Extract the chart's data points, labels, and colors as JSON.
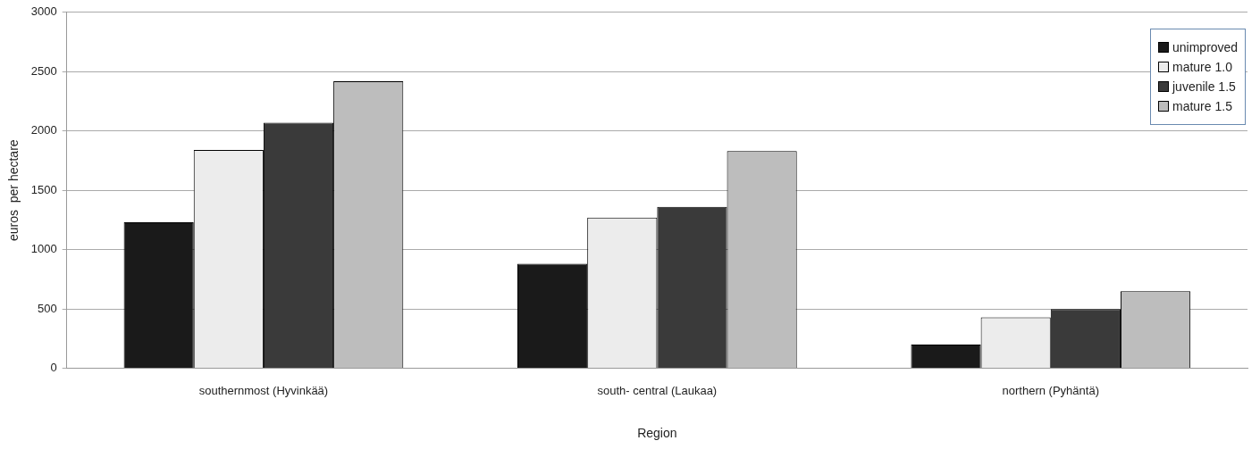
{
  "chart_data": {
    "type": "bar",
    "xlabel": "Region",
    "ylabel": "euros  per hectare",
    "categories": [
      "southernmost (Hyvinkää)",
      "south- central (Laukaa)",
      "northern (Pyhäntä)"
    ],
    "series": [
      {
        "name": "unimproved",
        "color": "#1a1a1a",
        "values": [
          1230,
          880,
          200
        ]
      },
      {
        "name": "mature 1.0",
        "color": "#ececec",
        "values": [
          1840,
          1270,
          430
        ]
      },
      {
        "name": "juvenile 1.5",
        "color": "#3a3a3a",
        "values": [
          2070,
          1360,
          500
        ]
      },
      {
        "name": "mature 1.5",
        "color": "#bdbdbd",
        "values": [
          2420,
          1830,
          650
        ]
      }
    ],
    "ylim": [
      0,
      3000
    ],
    "yticks": [
      0,
      500,
      1000,
      1500,
      2000,
      2500,
      3000
    ],
    "grid": "y",
    "legend": "top right"
  }
}
